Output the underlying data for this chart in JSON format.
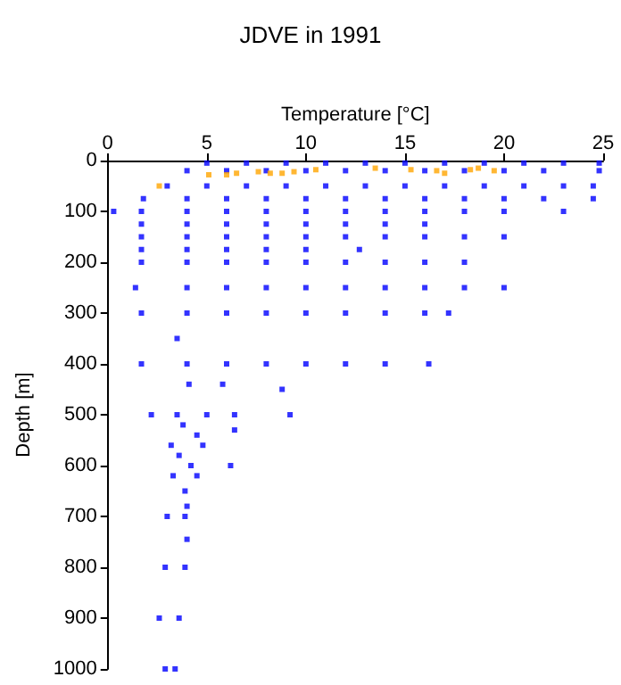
{
  "chart_data": {
    "type": "scatter",
    "title": "JDVE in 1991",
    "xlabel": "Temperature [°C]",
    "ylabel": "Depth [m]",
    "xlim": [
      0,
      25
    ],
    "xticks": [
      0,
      5,
      10,
      15,
      20,
      25
    ],
    "ylim": [
      1000,
      0
    ],
    "yticks": [
      0,
      100,
      200,
      300,
      400,
      500,
      600,
      700,
      800,
      900,
      1000
    ],
    "grid": false,
    "marker": "square",
    "series": [
      {
        "color": "#0000ff",
        "x": [
          5,
          7,
          9,
          11,
          13,
          15,
          17,
          19,
          21,
          23,
          24.8,
          4,
          6,
          8,
          10,
          12,
          14,
          16,
          18,
          20,
          22,
          24.8,
          3,
          5,
          7,
          9,
          11,
          13,
          15,
          17,
          19,
          21,
          23,
          24.5,
          1.8,
          4,
          6,
          8,
          10,
          12,
          14,
          16,
          18,
          20,
          22,
          24.5,
          0.3,
          1.7,
          4,
          6,
          8,
          10,
          12,
          14,
          16,
          18,
          20,
          23,
          1.7,
          4,
          6,
          8,
          10,
          12,
          14,
          16,
          1.7,
          4,
          6,
          8,
          10,
          12,
          14,
          16,
          18,
          20,
          1.7,
          4,
          6,
          8,
          10,
          12.7,
          1.7,
          4,
          6,
          8,
          10,
          12,
          14,
          16,
          18,
          1.4,
          4,
          6,
          8,
          10,
          12,
          14,
          16,
          18,
          20,
          1.7,
          4,
          6,
          8,
          10,
          12,
          14,
          16,
          17.2,
          1.7,
          4,
          6,
          8,
          10,
          12,
          14,
          16.2,
          2.2,
          3.5,
          5,
          6.4,
          9.2,
          4.1,
          5.8,
          3.5,
          8.8,
          3.8,
          4.5,
          3.2,
          4.8,
          3.6,
          4.2,
          3.3,
          4.5,
          3.9,
          6.4,
          6.2,
          4,
          3,
          3.9,
          4,
          2.9,
          3.9,
          2.6,
          3.6,
          2.9,
          3.4
        ],
        "values": [
          5,
          5,
          5,
          5,
          5,
          5,
          5,
          5,
          5,
          5,
          5,
          20,
          20,
          20,
          20,
          20,
          20,
          20,
          20,
          20,
          20,
          20,
          50,
          50,
          50,
          50,
          50,
          50,
          50,
          50,
          50,
          50,
          50,
          50,
          75,
          75,
          75,
          75,
          75,
          75,
          75,
          75,
          75,
          75,
          75,
          75,
          100,
          100,
          100,
          100,
          100,
          100,
          100,
          100,
          100,
          100,
          100,
          100,
          125,
          125,
          125,
          125,
          125,
          125,
          125,
          125,
          150,
          150,
          150,
          150,
          150,
          150,
          150,
          150,
          150,
          150,
          175,
          175,
          175,
          175,
          175,
          175,
          200,
          200,
          200,
          200,
          200,
          200,
          200,
          200,
          200,
          250,
          250,
          250,
          250,
          250,
          250,
          250,
          250,
          250,
          250,
          300,
          300,
          300,
          300,
          300,
          300,
          300,
          300,
          300,
          400,
          400,
          400,
          400,
          400,
          400,
          400,
          400,
          500,
          500,
          500,
          500,
          500,
          440,
          440,
          350,
          450,
          520,
          540,
          560,
          560,
          580,
          600,
          620,
          620,
          650,
          530,
          600,
          680,
          700,
          700,
          745,
          800,
          800,
          900,
          900,
          1000,
          1000
        ]
      },
      {
        "color": "#ffa500",
        "x": [
          2.6,
          5.1,
          6,
          6.5,
          7.6,
          8.2,
          8.8,
          9.4,
          10.5,
          13.5,
          15.3,
          16.6,
          17,
          18.3,
          18.7,
          19.5
        ],
        "values": [
          50,
          28,
          28,
          25,
          22,
          25,
          25,
          22,
          18,
          15,
          18,
          20,
          25,
          18,
          15,
          20
        ]
      }
    ]
  }
}
